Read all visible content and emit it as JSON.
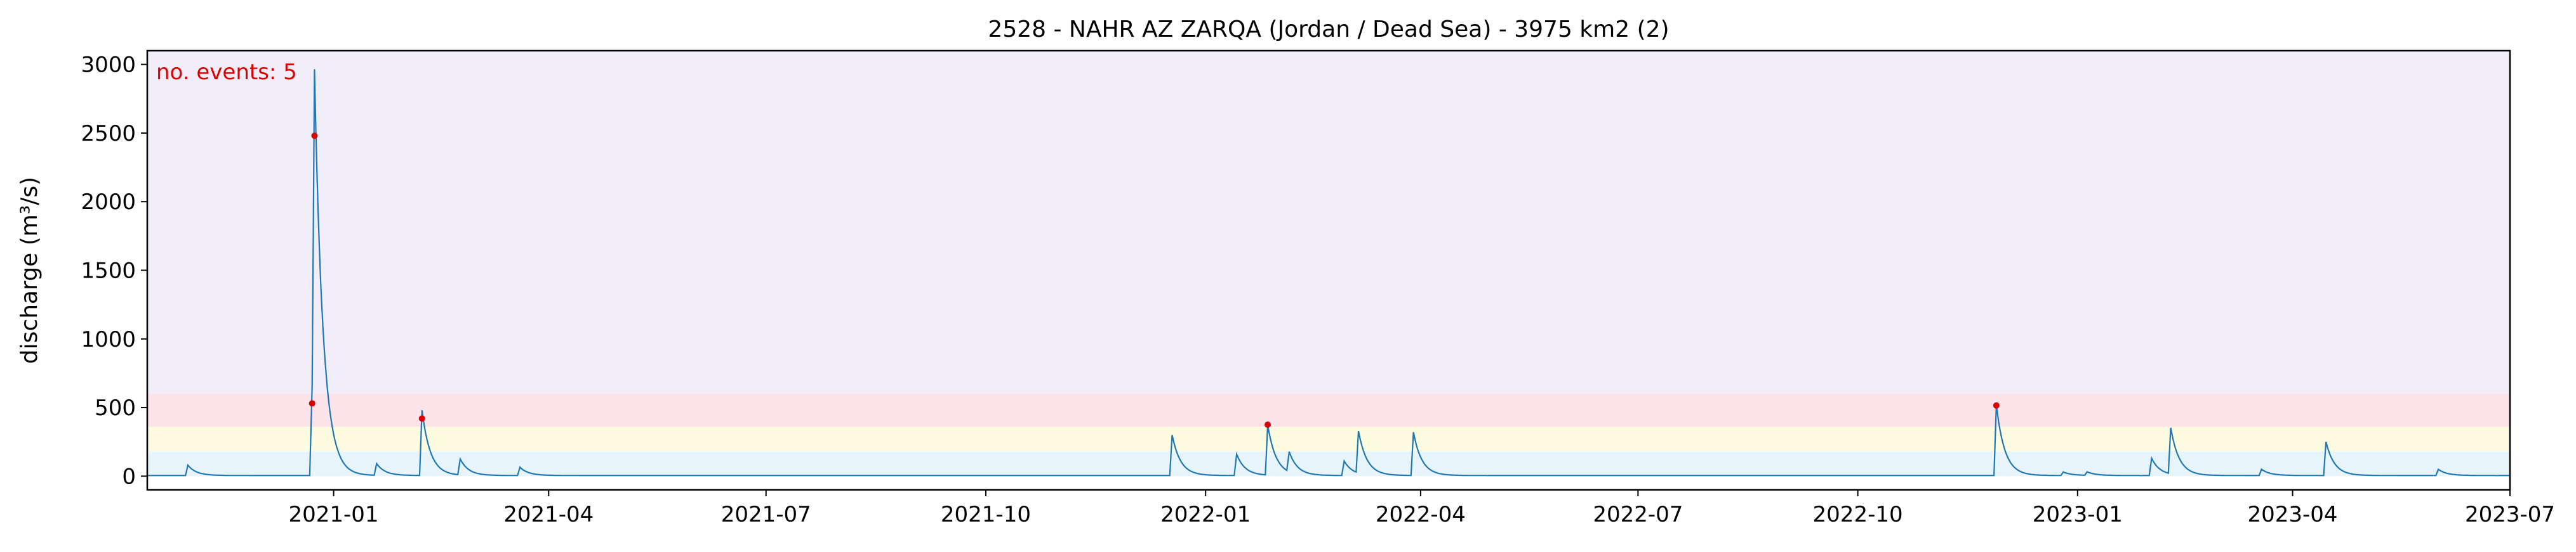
{
  "chart_data": {
    "type": "line",
    "title": "2528 - NAHR AZ ZARQA (Jordan / Dead Sea) - 3975 km2 (2)",
    "xlabel": "",
    "ylabel": "discharge (m³/s)",
    "xlim": [
      "2020-10-15",
      "2023-07-01"
    ],
    "ylim": [
      -100,
      3100
    ],
    "x_ticks": [
      "2021-01",
      "2021-04",
      "2021-07",
      "2021-10",
      "2022-01",
      "2022-04",
      "2022-07",
      "2022-10",
      "2023-01",
      "2023-04",
      "2023-07"
    ],
    "y_ticks": [
      0,
      500,
      1000,
      1500,
      2000,
      2500,
      3000
    ],
    "grid": false,
    "annotation": "no. events: 5",
    "threshold_bands": [
      {
        "from": 0,
        "to": 180,
        "color": "#e8f4fb"
      },
      {
        "from": 180,
        "to": 360,
        "color": "#fdfbe0"
      },
      {
        "from": 360,
        "to": 600,
        "color": "#fde4ea"
      },
      {
        "from": 600,
        "to": 3100,
        "color": "#f1eefa"
      }
    ],
    "series": [
      {
        "color": "#1f77b4",
        "baseline": 5,
        "peaks": [
          {
            "date": "2020-11-01",
            "value": 80
          },
          {
            "date": "2020-12-23",
            "value": 650
          },
          {
            "date": "2020-12-24",
            "value": 2480
          },
          {
            "date": "2021-01-19",
            "value": 90
          },
          {
            "date": "2021-02-07",
            "value": 480
          },
          {
            "date": "2021-02-23",
            "value": 120
          },
          {
            "date": "2021-03-20",
            "value": 65
          },
          {
            "date": "2021-12-18",
            "value": 300
          },
          {
            "date": "2022-01-14",
            "value": 160
          },
          {
            "date": "2022-01-27",
            "value": 370
          },
          {
            "date": "2022-02-05",
            "value": 150
          },
          {
            "date": "2022-02-28",
            "value": 110
          },
          {
            "date": "2022-03-06",
            "value": 310
          },
          {
            "date": "2022-03-29",
            "value": 320
          },
          {
            "date": "2022-11-28",
            "value": 520
          },
          {
            "date": "2022-12-26",
            "value": 30
          },
          {
            "date": "2023-01-05",
            "value": 30
          },
          {
            "date": "2023-02-01",
            "value": 130
          },
          {
            "date": "2023-02-09",
            "value": 340
          },
          {
            "date": "2023-03-19",
            "value": 50
          },
          {
            "date": "2023-04-15",
            "value": 250
          },
          {
            "date": "2023-06-01",
            "value": 50
          }
        ]
      }
    ],
    "events": [
      {
        "date": "2020-12-23",
        "value": 530
      },
      {
        "date": "2020-12-24",
        "value": 2480
      },
      {
        "date": "2021-02-07",
        "value": 420
      },
      {
        "date": "2022-01-27",
        "value": 375
      },
      {
        "date": "2022-11-28",
        "value": 515
      }
    ],
    "event_color": "#dd0000"
  }
}
